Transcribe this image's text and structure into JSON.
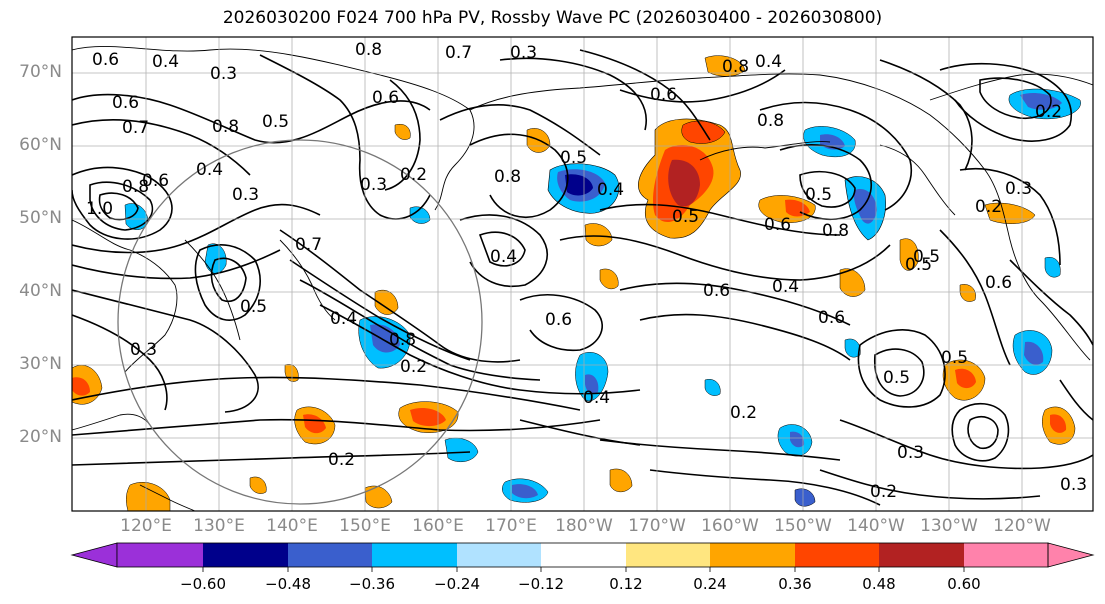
{
  "title": "2026030200 F024 700 hPa PV, Rossby Wave PC (2026030400 - 2026030800)",
  "lat_labels": [
    "70°N",
    "60°N",
    "50°N",
    "40°N",
    "30°N",
    "20°N"
  ],
  "lon_labels": [
    "120°E",
    "130°E",
    "140°E",
    "150°E",
    "160°E",
    "170°E",
    "180°W",
    "170°W",
    "160°W",
    "150°W",
    "140°W",
    "130°W",
    "120°W"
  ],
  "colorbar": {
    "ticks": [
      "−0.60",
      "−0.48",
      "−0.36",
      "−0.24",
      "−0.12",
      "0.12",
      "0.24",
      "0.36",
      "0.48",
      "0.60"
    ],
    "colors": [
      "#9b30d9",
      "#00008b",
      "#3a5fcd",
      "#00bfff",
      "#b0e2ff",
      "#ffffff",
      "#ffe680",
      "#ffa500",
      "#ff4500",
      "#b22222",
      "#ff82ab"
    ]
  },
  "contour_labels": [
    "0.6",
    "0.4",
    "0.6",
    "0.7",
    "0.8",
    "0.3",
    "0.5",
    "0.8",
    "0.3",
    "0.6",
    "0.8",
    "0.3",
    "0.4",
    "0.2",
    "0.8",
    "0.4",
    "0.5",
    "0.8",
    "0.6",
    "0.8",
    "0.4",
    "0.5",
    "0.3",
    "0.2",
    "1.0",
    "0.6",
    "0.4",
    "0.3",
    "0.7",
    "0.5",
    "0.6",
    "0.4",
    "0.5",
    "0.5",
    "0.6",
    "0.4",
    "0.6",
    "0.8",
    "0.2",
    "0.2",
    "0.3",
    "0.5",
    "0.5",
    "0.6",
    "0.3",
    "0.2",
    "0.6",
    "0.4",
    "0.5",
    "0.8",
    "0.2",
    "0.3",
    "0.2",
    "0.7"
  ]
}
